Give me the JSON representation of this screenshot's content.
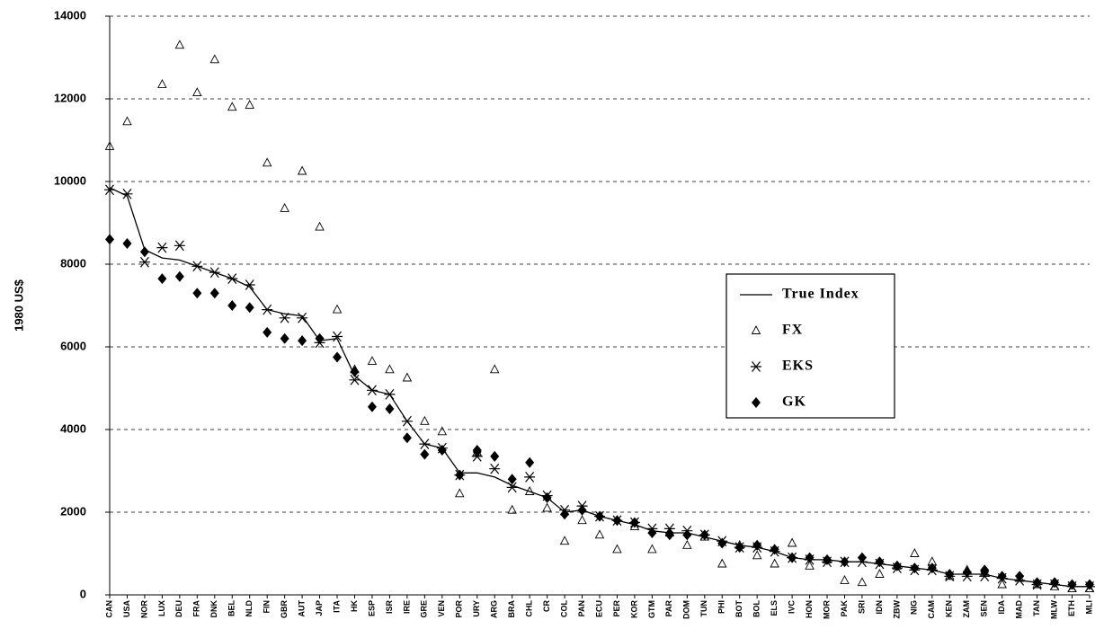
{
  "chart_data": {
    "type": "line",
    "y_label": "1980 US$",
    "categories": [
      "CAN",
      "USA",
      "NOR",
      "LUX",
      "DEU",
      "FRA",
      "DNK",
      "BEL",
      "NLD",
      "FIN",
      "GBR",
      "AUT",
      "JAP",
      "ITA",
      "HK",
      "ESP",
      "ISR",
      "IRE",
      "GRE",
      "VEN",
      "POR",
      "URY",
      "ARG",
      "BRA",
      "CHL",
      "CR",
      "COL",
      "PAN",
      "ECU",
      "PER",
      "KOR",
      "GTM",
      "PAR",
      "DOM",
      "TUN",
      "PHI",
      "BOT",
      "BOL",
      "ELS",
      "IVC",
      "HON",
      "MOR",
      "PAK",
      "SRI",
      "IDN",
      "ZBW",
      "NIG",
      "CAM",
      "KEN",
      "ZAM",
      "SEN",
      "IDA",
      "MAD",
      "TAN",
      "MLW",
      "ETH",
      "MLI"
    ],
    "series": [
      {
        "name": "True Index",
        "marker": "line",
        "color": "#000000",
        "values": [
          9850,
          9650,
          8350,
          8150,
          8100,
          7950,
          7800,
          7650,
          7450,
          6900,
          6800,
          6750,
          6150,
          6200,
          5300,
          4950,
          4850,
          4200,
          3650,
          3550,
          2950,
          2950,
          2850,
          2650,
          2500,
          2350,
          2000,
          2050,
          1900,
          1800,
          1700,
          1550,
          1500,
          1500,
          1400,
          1300,
          1200,
          1150,
          1050,
          900,
          850,
          850,
          800,
          800,
          750,
          700,
          650,
          600,
          500,
          500,
          500,
          400,
          350,
          300,
          250,
          200,
          200
        ]
      },
      {
        "name": "FX",
        "marker": "triangle",
        "color": "#000000",
        "values": [
          10850,
          11450,
          null,
          12350,
          13300,
          12150,
          12950,
          11800,
          11850,
          10450,
          9350,
          10250,
          8900,
          6900,
          5450,
          5650,
          5450,
          5250,
          4200,
          3950,
          2450,
          3450,
          5450,
          2050,
          2500,
          2100,
          1300,
          1800,
          1450,
          1100,
          1650,
          1100,
          1500,
          1200,
          1400,
          750,
          1200,
          950,
          750,
          1250,
          700,
          850,
          350,
          300,
          500,
          700,
          1000,
          800,
          450,
          600,
          550,
          250,
          400,
          250,
          200,
          150,
          150
        ]
      },
      {
        "name": "EKS",
        "marker": "asterisk",
        "color": "#000000",
        "values": [
          9800,
          9700,
          8050,
          8400,
          8450,
          7950,
          7800,
          7650,
          7500,
          6900,
          6700,
          6700,
          6100,
          6250,
          5200,
          4950,
          4850,
          4200,
          3650,
          3550,
          2900,
          3350,
          3050,
          2600,
          2850,
          2400,
          2050,
          2150,
          1900,
          1800,
          1750,
          1600,
          1600,
          1550,
          1450,
          1300,
          1150,
          1150,
          1050,
          900,
          850,
          800,
          800,
          800,
          750,
          650,
          600,
          600,
          450,
          450,
          450,
          400,
          350,
          250,
          250,
          200,
          200
        ]
      },
      {
        "name": "GK",
        "marker": "diamond",
        "color": "#000000",
        "values": [
          8600,
          8500,
          8300,
          7650,
          7700,
          7300,
          7300,
          7000,
          6950,
          6350,
          6200,
          6150,
          6200,
          5750,
          5400,
          4550,
          4500,
          3800,
          3400,
          3500,
          2900,
          3500,
          3350,
          2800,
          3200,
          2350,
          1950,
          2050,
          1900,
          1800,
          1750,
          1500,
          1450,
          1450,
          1450,
          1250,
          1150,
          1200,
          1100,
          900,
          900,
          850,
          800,
          900,
          800,
          700,
          650,
          650,
          500,
          550,
          600,
          450,
          450,
          300,
          300,
          250,
          250
        ]
      }
    ],
    "ylim": [
      0,
      14000
    ],
    "yticks": [
      0,
      2000,
      4000,
      6000,
      8000,
      10000,
      12000,
      14000
    ],
    "grid": true,
    "legend": "right"
  }
}
